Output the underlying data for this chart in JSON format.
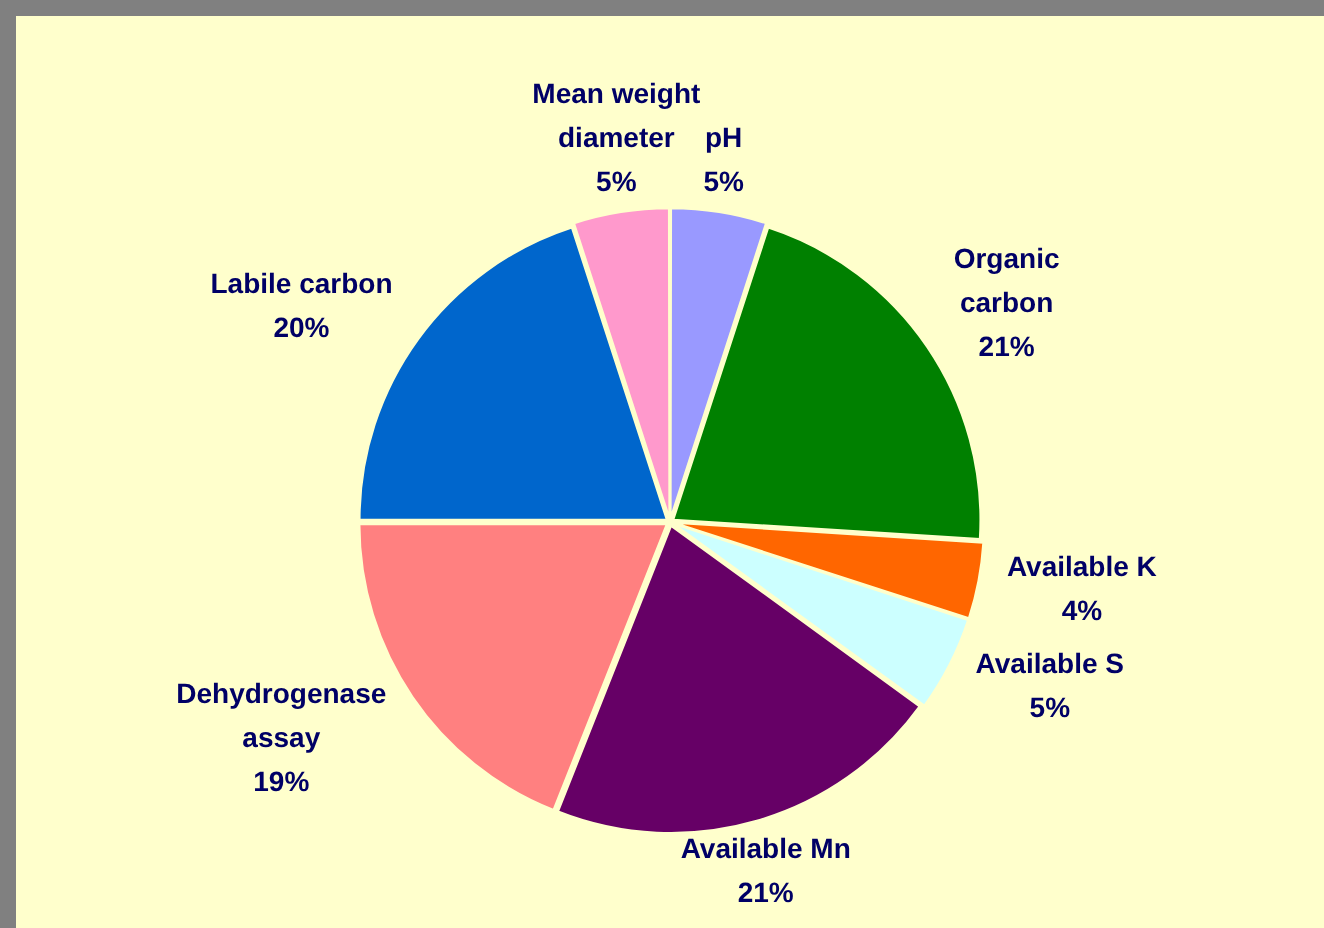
{
  "chart_data": {
    "type": "pie",
    "categories": [
      "pH",
      "Organic carbon",
      "Available K",
      "Available S",
      "Available Mn",
      "Dehydrogenase assay",
      "Labile carbon",
      "Mean weight diameter"
    ],
    "values": [
      5,
      21,
      4,
      5,
      21,
      19,
      20,
      5
    ],
    "value_labels": [
      "5%",
      "21%",
      "4%",
      "5%",
      "21%",
      "19%",
      "20%",
      "5%"
    ],
    "colors": [
      "#9999ff",
      "#008000",
      "#ff6600",
      "#ccffff",
      "#660066",
      "#ff8080",
      "#0066cc",
      "#ff99cc"
    ],
    "legend": false
  }
}
